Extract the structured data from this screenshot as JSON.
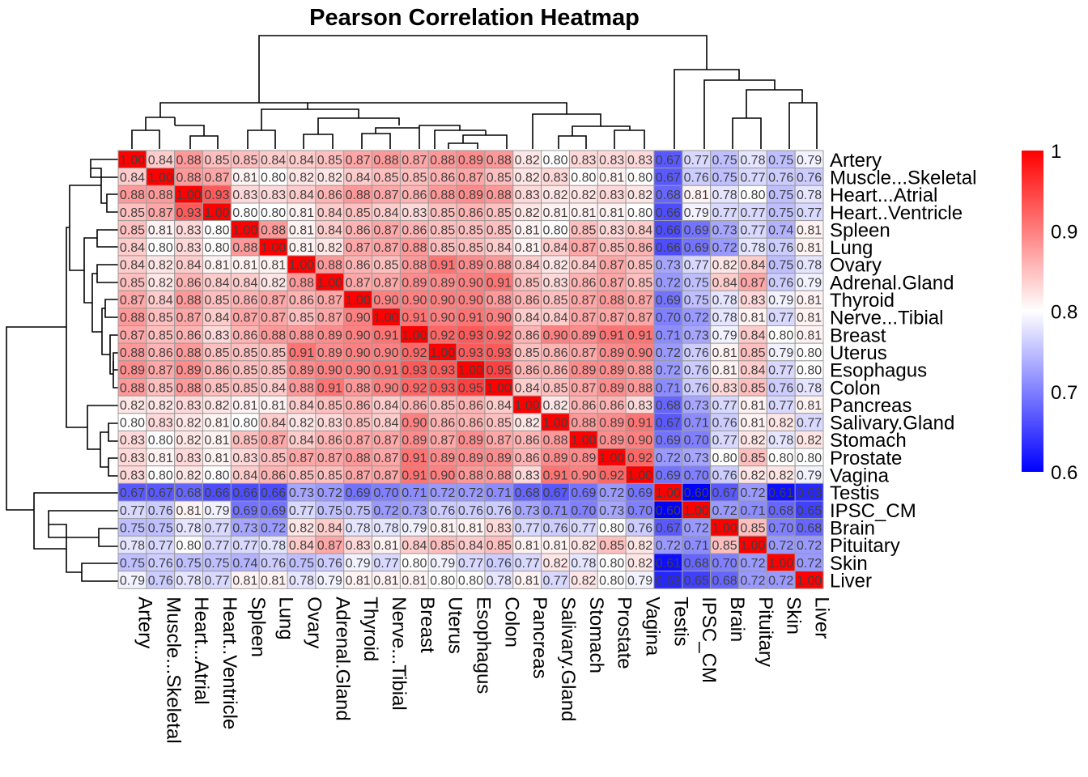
{
  "chart_data": {
    "type": "heatmap",
    "title": "Pearson Correlation Heatmap",
    "rows": [
      "Artery",
      "Muscle...Skeletal",
      "Heart...Atrial",
      "Heart..Ventricle",
      "Spleen",
      "Lung",
      "Ovary",
      "Adrenal.Gland",
      "Thyroid",
      "Nerve...Tibial",
      "Breast",
      "Uterus",
      "Esophagus",
      "Colon",
      "Pancreas",
      "Salivary.Gland",
      "Stomach",
      "Prostate",
      "Vagina",
      "Testis",
      "IPSC_CM",
      "Brain",
      "Pituitary",
      "Skin",
      "Liver"
    ],
    "columns": [
      "Artery",
      "Muscle...Skeletal",
      "Heart...Atrial",
      "Heart..Ventricle",
      "Spleen",
      "Lung",
      "Ovary",
      "Adrenal.Gland",
      "Thyroid",
      "Nerve...Tibial",
      "Breast",
      "Uterus",
      "Esophagus",
      "Colon",
      "Pancreas",
      "Salivary.Gland",
      "Stomach",
      "Prostate",
      "Vagina",
      "Testis",
      "IPSC_CM",
      "Brain",
      "Pituitary",
      "Skin",
      "Liver"
    ],
    "values": [
      [
        "1.00",
        "0.84",
        "0.88",
        "0.85",
        "0.85",
        "0.84",
        "0.84",
        "0.85",
        "0.87",
        "0.88",
        "0.87",
        "0.88",
        "0.89",
        "0.88",
        "0.82",
        "0.80",
        "0.83",
        "0.83",
        "0.83",
        "0.67",
        "0.77",
        "0.75",
        "0.78",
        "0.75",
        "0.79"
      ],
      [
        "0.84",
        "1.00",
        "0.88",
        "0.87",
        "0.81",
        "0.80",
        "0.82",
        "0.82",
        "0.84",
        "0.85",
        "0.85",
        "0.86",
        "0.87",
        "0.85",
        "0.82",
        "0.83",
        "0.80",
        "0.81",
        "0.80",
        "0.67",
        "0.76",
        "0.75",
        "0.77",
        "0.76",
        "0.76"
      ],
      [
        "0.88",
        "0.88",
        "1.00",
        "0.93",
        "0.83",
        "0.83",
        "0.84",
        "0.86",
        "0.88",
        "0.87",
        "0.86",
        "0.88",
        "0.89",
        "0.88",
        "0.83",
        "0.82",
        "0.82",
        "0.83",
        "0.82",
        "0.68",
        "0.81",
        "0.78",
        "0.80",
        "0.75",
        "0.78"
      ],
      [
        "0.85",
        "0.87",
        "0.93",
        "1.00",
        "0.80",
        "0.80",
        "0.81",
        "0.84",
        "0.85",
        "0.84",
        "0.83",
        "0.85",
        "0.86",
        "0.85",
        "0.82",
        "0.81",
        "0.81",
        "0.81",
        "0.80",
        "0.66",
        "0.79",
        "0.77",
        "0.77",
        "0.75",
        "0.77"
      ],
      [
        "0.85",
        "0.81",
        "0.83",
        "0.80",
        "1.00",
        "0.88",
        "0.81",
        "0.84",
        "0.86",
        "0.87",
        "0.86",
        "0.85",
        "0.85",
        "0.85",
        "0.81",
        "0.80",
        "0.85",
        "0.83",
        "0.84",
        "0.66",
        "0.69",
        "0.73",
        "0.77",
        "0.74",
        "0.81"
      ],
      [
        "0.84",
        "0.80",
        "0.83",
        "0.80",
        "0.88",
        "1.00",
        "0.81",
        "0.82",
        "0.87",
        "0.87",
        "0.88",
        "0.85",
        "0.85",
        "0.84",
        "0.81",
        "0.84",
        "0.87",
        "0.85",
        "0.86",
        "0.66",
        "0.69",
        "0.72",
        "0.78",
        "0.76",
        "0.81"
      ],
      [
        "0.84",
        "0.82",
        "0.84",
        "0.81",
        "0.81",
        "0.81",
        "1.00",
        "0.88",
        "0.86",
        "0.85",
        "0.88",
        "0.91",
        "0.89",
        "0.88",
        "0.84",
        "0.82",
        "0.84",
        "0.87",
        "0.85",
        "0.73",
        "0.77",
        "0.82",
        "0.84",
        "0.75",
        "0.78"
      ],
      [
        "0.85",
        "0.82",
        "0.86",
        "0.84",
        "0.84",
        "0.82",
        "0.88",
        "1.00",
        "0.87",
        "0.87",
        "0.89",
        "0.89",
        "0.90",
        "0.91",
        "0.85",
        "0.83",
        "0.86",
        "0.87",
        "0.85",
        "0.72",
        "0.75",
        "0.84",
        "0.87",
        "0.76",
        "0.79"
      ],
      [
        "0.87",
        "0.84",
        "0.88",
        "0.85",
        "0.86",
        "0.87",
        "0.86",
        "0.87",
        "1.00",
        "0.90",
        "0.90",
        "0.90",
        "0.90",
        "0.88",
        "0.86",
        "0.85",
        "0.87",
        "0.88",
        "0.87",
        "0.69",
        "0.75",
        "0.78",
        "0.83",
        "0.79",
        "0.81"
      ],
      [
        "0.88",
        "0.85",
        "0.87",
        "0.84",
        "0.87",
        "0.87",
        "0.85",
        "0.87",
        "0.90",
        "1.00",
        "0.91",
        "0.90",
        "0.91",
        "0.90",
        "0.84",
        "0.84",
        "0.87",
        "0.87",
        "0.87",
        "0.70",
        "0.72",
        "0.78",
        "0.81",
        "0.77",
        "0.81"
      ],
      [
        "0.87",
        "0.85",
        "0.86",
        "0.83",
        "0.86",
        "0.88",
        "0.88",
        "0.89",
        "0.90",
        "0.91",
        "1.00",
        "0.92",
        "0.93",
        "0.92",
        "0.86",
        "0.90",
        "0.89",
        "0.91",
        "0.91",
        "0.71",
        "0.73",
        "0.79",
        "0.84",
        "0.80",
        "0.81"
      ],
      [
        "0.88",
        "0.86",
        "0.88",
        "0.85",
        "0.85",
        "0.85",
        "0.91",
        "0.89",
        "0.90",
        "0.90",
        "0.92",
        "1.00",
        "0.93",
        "0.93",
        "0.85",
        "0.86",
        "0.87",
        "0.89",
        "0.90",
        "0.72",
        "0.76",
        "0.81",
        "0.85",
        "0.79",
        "0.80"
      ],
      [
        "0.89",
        "0.87",
        "0.89",
        "0.86",
        "0.85",
        "0.85",
        "0.89",
        "0.90",
        "0.90",
        "0.91",
        "0.93",
        "0.93",
        "1.00",
        "0.95",
        "0.86",
        "0.86",
        "0.89",
        "0.89",
        "0.88",
        "0.72",
        "0.76",
        "0.81",
        "0.84",
        "0.77",
        "0.80"
      ],
      [
        "0.88",
        "0.85",
        "0.88",
        "0.85",
        "0.85",
        "0.84",
        "0.88",
        "0.91",
        "0.88",
        "0.90",
        "0.92",
        "0.93",
        "0.95",
        "1.00",
        "0.84",
        "0.85",
        "0.87",
        "0.89",
        "0.88",
        "0.71",
        "0.76",
        "0.83",
        "0.85",
        "0.76",
        "0.78"
      ],
      [
        "0.82",
        "0.82",
        "0.83",
        "0.82",
        "0.81",
        "0.81",
        "0.84",
        "0.85",
        "0.86",
        "0.84",
        "0.86",
        "0.85",
        "0.86",
        "0.84",
        "1.00",
        "0.82",
        "0.86",
        "0.86",
        "0.83",
        "0.68",
        "0.73",
        "0.77",
        "0.81",
        "0.77",
        "0.81"
      ],
      [
        "0.80",
        "0.83",
        "0.82",
        "0.81",
        "0.80",
        "0.84",
        "0.82",
        "0.83",
        "0.85",
        "0.84",
        "0.90",
        "0.86",
        "0.86",
        "0.85",
        "0.82",
        "1.00",
        "0.88",
        "0.89",
        "0.91",
        "0.67",
        "0.71",
        "0.76",
        "0.81",
        "0.82",
        "0.77"
      ],
      [
        "0.83",
        "0.80",
        "0.82",
        "0.81",
        "0.85",
        "0.87",
        "0.84",
        "0.86",
        "0.87",
        "0.87",
        "0.89",
        "0.87",
        "0.89",
        "0.87",
        "0.86",
        "0.88",
        "1.00",
        "0.89",
        "0.90",
        "0.69",
        "0.70",
        "0.77",
        "0.82",
        "0.78",
        "0.82"
      ],
      [
        "0.83",
        "0.81",
        "0.83",
        "0.81",
        "0.83",
        "0.85",
        "0.87",
        "0.87",
        "0.88",
        "0.87",
        "0.91",
        "0.89",
        "0.89",
        "0.89",
        "0.86",
        "0.89",
        "0.89",
        "1.00",
        "0.92",
        "0.72",
        "0.73",
        "0.80",
        "0.85",
        "0.80",
        "0.80"
      ],
      [
        "0.83",
        "0.80",
        "0.82",
        "0.80",
        "0.84",
        "0.86",
        "0.85",
        "0.85",
        "0.87",
        "0.87",
        "0.91",
        "0.90",
        "0.88",
        "0.88",
        "0.83",
        "0.91",
        "0.90",
        "0.92",
        "1.00",
        "0.69",
        "0.70",
        "0.76",
        "0.82",
        "0.82",
        "0.79"
      ],
      [
        "0.67",
        "0.67",
        "0.68",
        "0.66",
        "0.66",
        "0.66",
        "0.73",
        "0.72",
        "0.69",
        "0.70",
        "0.71",
        "0.72",
        "0.72",
        "0.71",
        "0.68",
        "0.67",
        "0.69",
        "0.72",
        "0.69",
        "1.00",
        "0.60",
        "0.67",
        "0.72",
        "0.61",
        "0.63"
      ],
      [
        "0.77",
        "0.76",
        "0.81",
        "0.79",
        "0.69",
        "0.69",
        "0.77",
        "0.75",
        "0.75",
        "0.72",
        "0.73",
        "0.76",
        "0.76",
        "0.76",
        "0.73",
        "0.71",
        "0.70",
        "0.73",
        "0.70",
        "0.60",
        "1.00",
        "0.72",
        "0.71",
        "0.68",
        "0.65"
      ],
      [
        "0.75",
        "0.75",
        "0.78",
        "0.77",
        "0.73",
        "0.72",
        "0.82",
        "0.84",
        "0.78",
        "0.78",
        "0.79",
        "0.81",
        "0.81",
        "0.83",
        "0.77",
        "0.76",
        "0.77",
        "0.80",
        "0.76",
        "0.67",
        "0.72",
        "1.00",
        "0.85",
        "0.70",
        "0.68"
      ],
      [
        "0.78",
        "0.77",
        "0.80",
        "0.77",
        "0.77",
        "0.78",
        "0.84",
        "0.87",
        "0.83",
        "0.81",
        "0.84",
        "0.85",
        "0.84",
        "0.85",
        "0.81",
        "0.81",
        "0.82",
        "0.85",
        "0.82",
        "0.72",
        "0.71",
        "0.85",
        "1.00",
        "0.72",
        "0.72"
      ],
      [
        "0.75",
        "0.76",
        "0.75",
        "0.75",
        "0.74",
        "0.76",
        "0.75",
        "0.76",
        "0.79",
        "0.77",
        "0.80",
        "0.79",
        "0.77",
        "0.76",
        "0.77",
        "0.82",
        "0.78",
        "0.80",
        "0.82",
        "0.61",
        "0.68",
        "0.70",
        "0.72",
        "1.00",
        "0.72"
      ],
      [
        "0.79",
        "0.76",
        "0.78",
        "0.77",
        "0.81",
        "0.81",
        "0.78",
        "0.79",
        "0.81",
        "0.81",
        "0.81",
        "0.80",
        "0.80",
        "0.78",
        "0.81",
        "0.77",
        "0.82",
        "0.80",
        "0.79",
        "0.63",
        "0.65",
        "0.68",
        "0.72",
        "0.72",
        "1.00"
      ]
    ],
    "color_scale": {
      "min": 0.6,
      "mid": 0.8,
      "max": 1.0,
      "low_color": "#0000ff",
      "mid_color": "#ffffff",
      "high_color": "#ff0000"
    },
    "legend": {
      "ticks": [
        "1",
        "0.9",
        "0.8",
        "0.7",
        "0.6"
      ],
      "position": "right"
    },
    "dendrograms": [
      "row",
      "column"
    ]
  }
}
